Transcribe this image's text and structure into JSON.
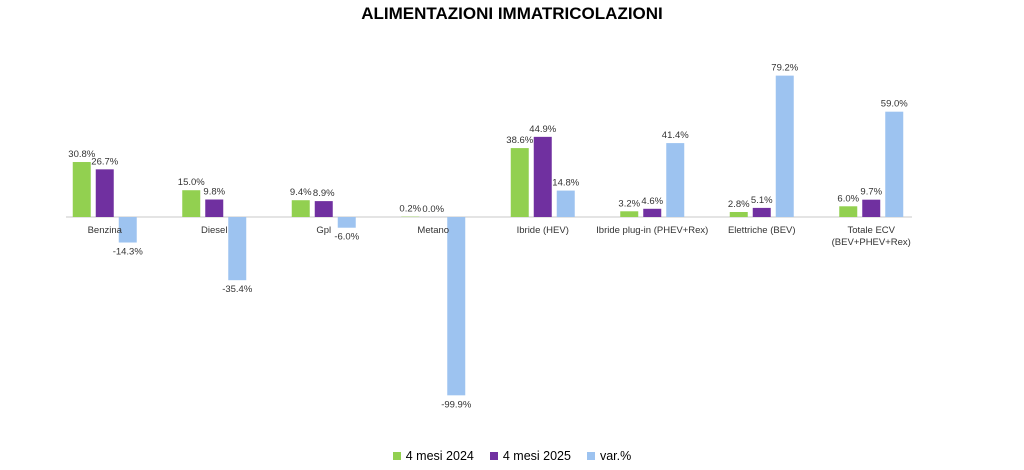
{
  "chart_data": {
    "type": "bar",
    "title": "ALIMENTAZIONI IMMATRICOLAZIONI",
    "categories": [
      "Benzina",
      "Diesel",
      "Gpl",
      "Metano",
      "Ibride  (HEV)",
      "Ibride plug-in (PHEV+Rex)",
      "Elettriche (BEV)",
      "Totale ECV\n(BEV+PHEV+Rex)"
    ],
    "series": [
      {
        "name": "4 mesi 2024",
        "color": "#92d050",
        "values": [
          30.8,
          15.0,
          9.4,
          0.2,
          38.6,
          3.2,
          2.8,
          6.0
        ],
        "labels": [
          "30.8%",
          "15.0%",
          "9.4%",
          "0.2%",
          "38.6%",
          "3.2%",
          "2.8%",
          "6.0%"
        ]
      },
      {
        "name": "4 mesi 2025",
        "color": "#7030a0",
        "values": [
          26.7,
          9.8,
          8.9,
          0.0,
          44.9,
          4.6,
          5.1,
          9.7
        ],
        "labels": [
          "26.7%",
          "9.8%",
          "8.9%",
          "0.0%",
          "44.9%",
          "4.6%",
          "5.1%",
          "9.7%"
        ]
      },
      {
        "name": "var.%",
        "color": "#9dc3f0",
        "values": [
          -14.3,
          -35.4,
          -6.0,
          -99.9,
          14.8,
          41.4,
          79.2,
          59.0
        ],
        "labels": [
          "-14.3%",
          "-35.4%",
          "-6.0%",
          "-99.9%",
          "14.8%",
          "41.4%",
          "79.2%",
          "59.0%"
        ]
      }
    ],
    "legend_position": "bottom",
    "grid": false
  }
}
